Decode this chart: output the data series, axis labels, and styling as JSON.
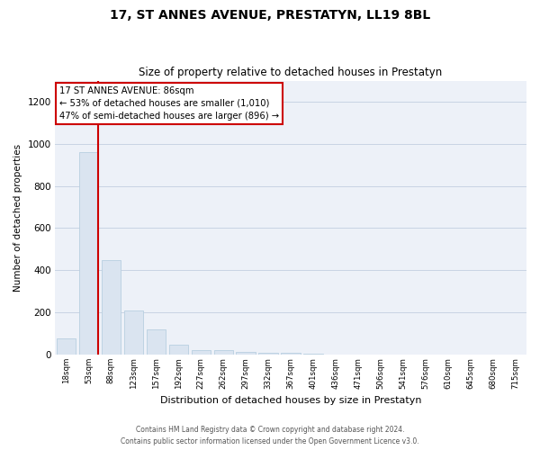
{
  "title": "17, ST ANNES AVENUE, PRESTATYN, LL19 8BL",
  "subtitle": "Size of property relative to detached houses in Prestatyn",
  "xlabel": "Distribution of detached houses by size in Prestatyn",
  "ylabel": "Number of detached properties",
  "bar_labels": [
    "18sqm",
    "53sqm",
    "88sqm",
    "123sqm",
    "157sqm",
    "192sqm",
    "227sqm",
    "262sqm",
    "297sqm",
    "332sqm",
    "367sqm",
    "401sqm",
    "436sqm",
    "471sqm",
    "506sqm",
    "541sqm",
    "576sqm",
    "610sqm",
    "645sqm",
    "680sqm",
    "715sqm"
  ],
  "bar_values": [
    75,
    960,
    450,
    210,
    120,
    45,
    20,
    20,
    15,
    10,
    8,
    3,
    1,
    0,
    0,
    0,
    0,
    0,
    0,
    0,
    0
  ],
  "bar_color": "#dae4f0",
  "bar_edgecolor": "#b8cfe0",
  "grid_color": "#c8d4e4",
  "bg_color": "#edf1f8",
  "vline_color": "#cc0000",
  "annotation_text": "17 ST ANNES AVENUE: 86sqm\n← 53% of detached houses are smaller (1,010)\n47% of semi-detached houses are larger (896) →",
  "annotation_box_facecolor": "#ffffff",
  "annotation_box_edgecolor": "#cc0000",
  "ylim": [
    0,
    1300
  ],
  "yticks": [
    0,
    200,
    400,
    600,
    800,
    1000,
    1200
  ],
  "footer_line1": "Contains HM Land Registry data © Crown copyright and database right 2024.",
  "footer_line2": "Contains public sector information licensed under the Open Government Licence v3.0."
}
